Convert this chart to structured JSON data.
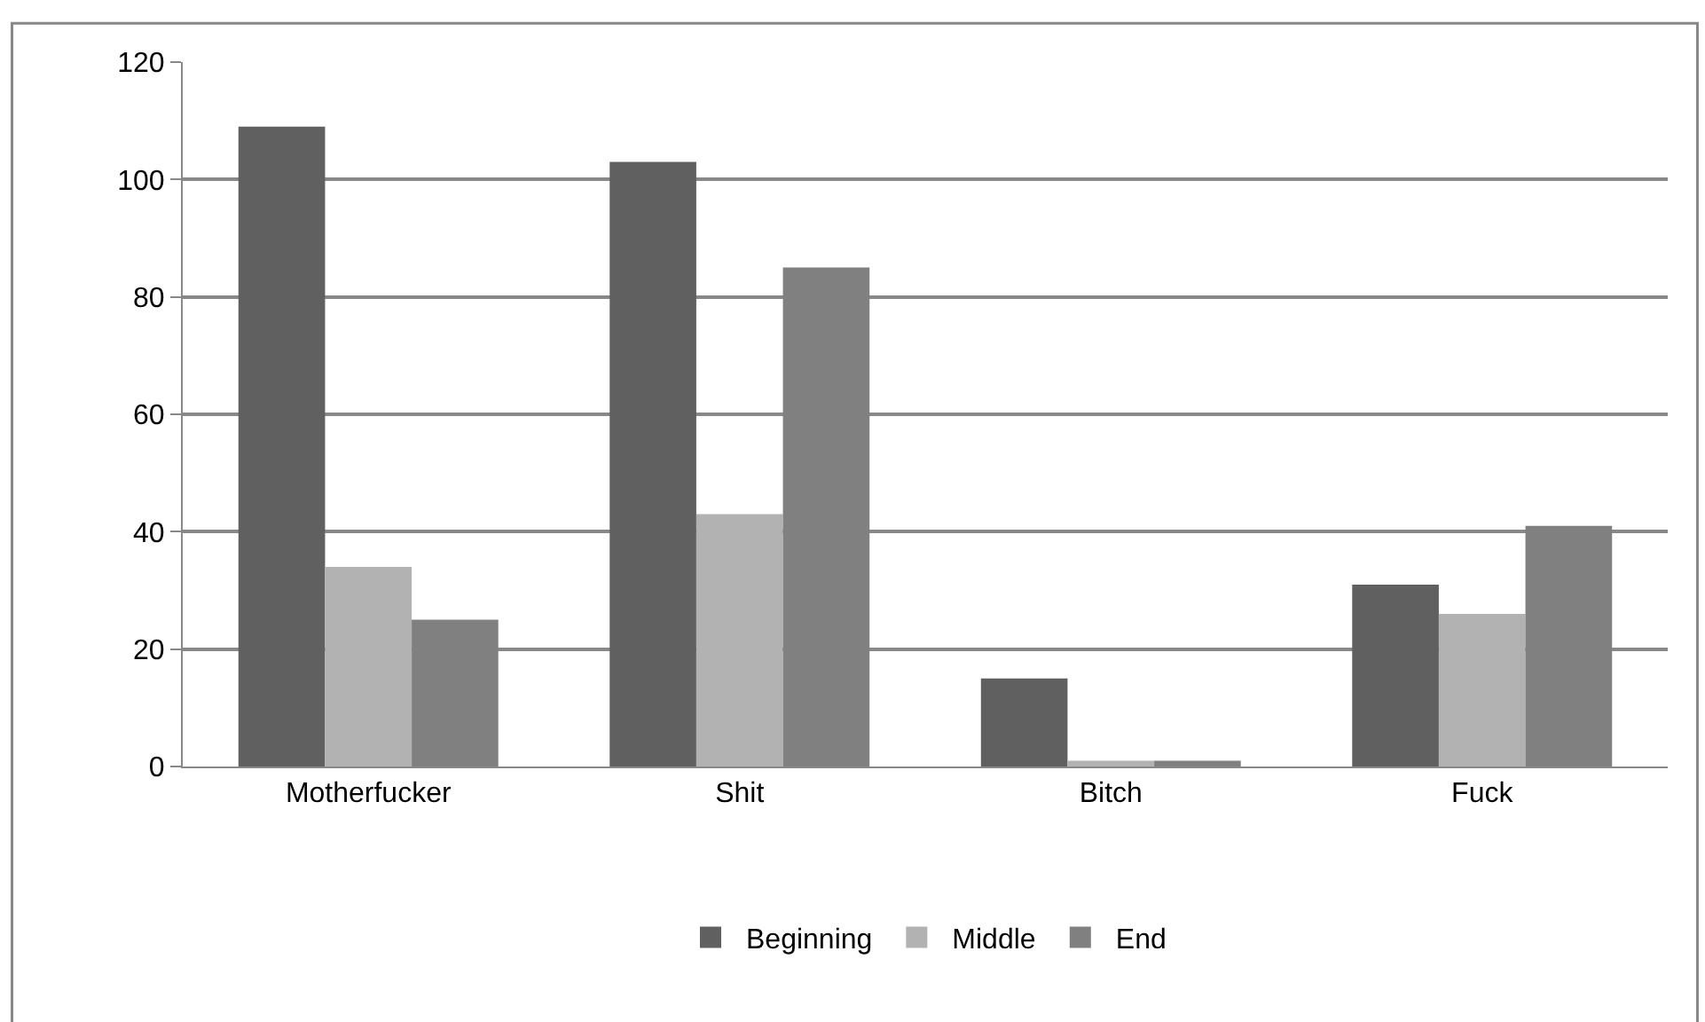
{
  "chart_data": {
    "type": "bar",
    "categories": [
      "Motherfucker",
      "Shit",
      "Bitch",
      "Fuck"
    ],
    "series": [
      {
        "name": "Beginning",
        "color": "#606060",
        "values": [
          109,
          103,
          15,
          31
        ]
      },
      {
        "name": "Middle",
        "color": "#b2b2b2",
        "values": [
          34,
          43,
          1,
          26
        ]
      },
      {
        "name": "End",
        "color": "#808080",
        "values": [
          25,
          85,
          1,
          41
        ]
      }
    ],
    "ylim": [
      0,
      120
    ],
    "yticks": [
      0,
      20,
      40,
      60,
      80,
      100,
      120
    ],
    "grid": "y",
    "legend": "bottom"
  }
}
